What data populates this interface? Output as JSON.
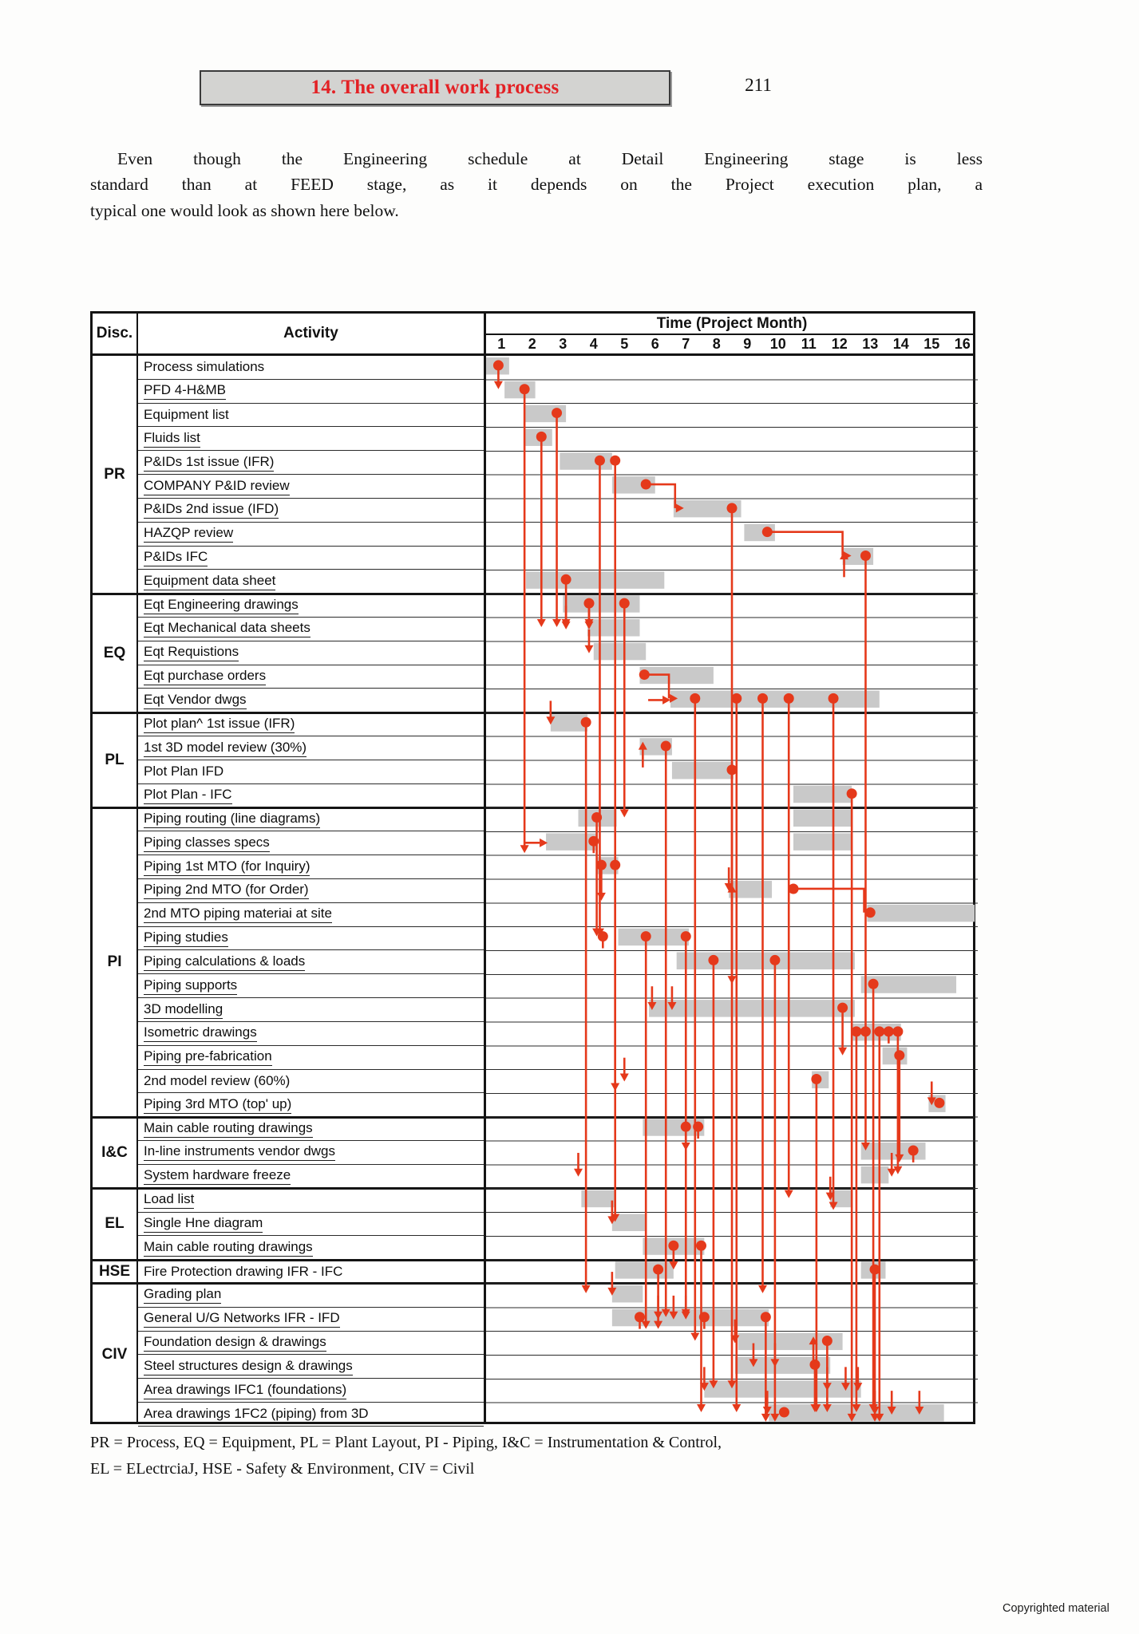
{
  "page": {
    "title": "14. The overall work process",
    "number": "211",
    "para": [
      "Even though the Engineering schedule at Detail Engineering stage is less",
      "standard than at FEED stage, as it depends on the Project execution plan, a",
      "typical one would look as shown here below."
    ],
    "legend": [
      "PR = Process, EQ = Equipment, PL = Plant Layout, PI - Piping, I&C = Instrumentation & Control,",
      "EL = ELectrciaJ, HSE - Safety & Environment, CIV = Civil"
    ],
    "copyright": "Copyrighted material"
  },
  "table": {
    "headers": {
      "disc": "Disc.",
      "activity": "Activity",
      "time": "Time (Project Month)"
    },
    "months": [
      "1",
      "2",
      "3",
      "4",
      "5",
      "6",
      "7",
      "8",
      "9",
      "10",
      "11",
      "12",
      "13",
      "14",
      "15",
      "16"
    ]
  },
  "chart_data": {
    "type": "gantt",
    "title": "Time (Project Month)",
    "x_range": [
      1,
      16
    ],
    "colors": {
      "bar": "#c9c9c9",
      "accent": "#e5391b",
      "grid": "#1c1c1c"
    },
    "sections": [
      {
        "code": "PR",
        "rows": [
          {
            "a": "Process simulations",
            "u": 0,
            "bars": [
              [
                1.0,
                1.75
              ]
            ],
            "dots": [
              [
                1.4,
                1
              ]
            ]
          },
          {
            "a": "PFD 4-H&MB",
            "u": 1,
            "bars": [
              [
                1.6,
                2.6
              ]
            ],
            "dots": [
              [
                2.25,
                19.5
              ]
            ]
          },
          {
            "a": "Equipment list",
            "u": 0,
            "bars": [
              [
                2.25,
                3.6
              ]
            ],
            "dots": [
              [
                3.3,
                9
              ]
            ]
          },
          {
            "a": "Fluids list",
            "u": 1,
            "bars": [
              [
                2.25,
                3.15
              ]
            ],
            "dots": [
              [
                2.8,
                8
              ]
            ]
          },
          {
            "a": "P&IDs 1st issue (IFR)",
            "u": 1,
            "bars": [
              [
                3.4,
                5.1
              ]
            ],
            "dots": [
              [
                4.7,
                20
              ],
              [
                5.2,
                26.5
              ]
            ]
          },
          {
            "a": "COMPANY P&ID review",
            "u": 1,
            "bars": [
              [
                5.1,
                6.5
              ]
            ],
            "dots": [
              [
                6.2,
                0
              ]
            ]
          },
          {
            "a": "P&IDs 2nd issue (IFD)",
            "u": 1,
            "bars": [
              [
                7.1,
                9.3
              ]
            ],
            "dots": [
              [
                9.0,
                37
              ]
            ]
          },
          {
            "a": "HAZQP review",
            "u": 1,
            "bars": [
              [
                9.4,
                10.4
              ]
            ],
            "dots": [
              [
                10.15,
                0
              ]
            ]
          },
          {
            "a": "P&IDs IFC",
            "u": 1,
            "bars": [
              [
                12.6,
                13.6
              ]
            ],
            "dots": [
              [
                13.35,
                25
              ]
            ],
            "up": [
              12.65
            ]
          },
          {
            "a": "Equipment data sheet",
            "u": 1,
            "bars": [
              [
                2.3,
                6.8
              ]
            ],
            "dots": [
              [
                3.6,
                2
              ]
            ]
          }
        ]
      },
      {
        "code": "EQ",
        "rows": [
          {
            "a": "Eqt Engineering drawings",
            "u": 1,
            "bars": [
              [
                3.5,
                6.0
              ]
            ],
            "dots": [
              [
                4.35,
                1
              ],
              [
                5.5,
                9
              ]
            ]
          },
          {
            "a": "Eqt Mechanical data sheets",
            "u": 1,
            "bars": [
              [
                4.3,
                6.0
              ]
            ],
            "dn": [
              3.6,
              4.35
            ]
          },
          {
            "a": "Eqt Requistions",
            "u": 1,
            "bars": [
              [
                4.5,
                6.2
              ]
            ],
            "dn": [
              4.35
            ]
          },
          {
            "a": "Eqt purchase orders",
            "u": 1,
            "bars": [
              [
                6.0,
                8.4
              ]
            ],
            "dots": [
              [
                6.15,
                0
              ]
            ]
          },
          {
            "a": "Eqt Vendor dwgs",
            "u": 1,
            "bars": [
              [
                7.0,
                13.8
              ]
            ],
            "dots": [
              [
                7.8,
                27
              ],
              [
                9.15,
                30
              ],
              [
                10.0,
                25
              ],
              [
                10.85,
                21
              ],
              [
                12.3,
                21.5
              ]
            ],
            "in": [
              6.95
            ]
          }
        ]
      },
      {
        "code": "PL",
        "rows": [
          {
            "a": "Plot plan^ 1st issue (IFR)",
            "u": 1,
            "bars": [
              [
                3.1,
                4.3
              ]
            ],
            "dots": [
              [
                4.25,
                24
              ]
            ],
            "dn": [
              3.1
            ]
          },
          {
            "a": "1st 3D model review (30%)",
            "u": 1,
            "bars": [
              [
                6.0,
                7.05
              ]
            ],
            "dots": [
              [
                6.85,
                24
              ]
            ],
            "up": [
              6.1
            ]
          },
          {
            "a": "Plot Plan IFD",
            "u": 0,
            "bars": [
              [
                7.05,
                9.05
              ]
            ],
            "dots": [
              [
                9.0,
                9
              ]
            ]
          },
          {
            "a": "Plot Plan - IFC",
            "u": 1,
            "bars": [
              [
                11.0,
                12.9
              ]
            ],
            "dots": [
              [
                12.9,
                26.5
              ]
            ]
          }
        ]
      },
      {
        "code": "PI",
        "rows": [
          {
            "a": "Piping routing (line diagrams)",
            "u": 1,
            "bars": [
              [
                4.0,
                5.25
              ],
              [
                11.0,
                12.9
              ]
            ],
            "dots": [
              [
                4.6,
                5
              ]
            ]
          },
          {
            "a": "Piping classes specs",
            "u": 1,
            "bars": [
              [
                2.95,
                4.6
              ],
              [
                11.0,
                12.9
              ]
            ],
            "dots": [
              [
                4.5,
                0.5
              ]
            ],
            "in": [
              2.95
            ]
          },
          {
            "a": "Piping 1st MTO (for Inquiry)",
            "u": 1,
            "bars": [
              [
                4.6,
                5.3
              ]
            ],
            "dots": [
              [
                4.75,
                1.5
              ],
              [
                5.2,
                15
              ]
            ]
          },
          {
            "a": "Piping 2nd MTO (for Order)",
            "u": 1,
            "bars": [
              [
                8.9,
                10.3
              ]
            ],
            "dots": [
              [
                11.0,
                0
              ]
            ],
            "up": [
              9.0
            ],
            "dn": [
              8.9
            ]
          },
          {
            "a": "2nd MTO piping materiai at site",
            "u": 1,
            "bars": [
              [
                13.4,
                16.9
              ]
            ],
            "dots": [
              [
                13.5,
                0
              ]
            ]
          },
          {
            "a": "Piping studies",
            "u": 1,
            "bars": [
              [
                5.3,
                7.6
              ]
            ],
            "dots": [
              [
                4.8,
                0.5
              ],
              [
                6.2,
                16.5
              ],
              [
                7.5,
                16
              ]
            ]
          },
          {
            "a": "Piping calculations & loads",
            "u": 1,
            "bars": [
              [
                7.2,
                13.0
              ]
            ],
            "dots": [
              [
                8.4,
                18
              ],
              [
                10.4,
                19.5
              ]
            ]
          },
          {
            "a": "Piping supports",
            "u": 1,
            "bars": [
              [
                13.2,
                16.3
              ]
            ],
            "dots": [
              [
                13.6,
                18
              ]
            ]
          },
          {
            "a": "3D modelling",
            "u": 1,
            "bars": [
              [
                6.3,
                13.0
              ]
            ],
            "dots": [
              [
                12.6,
                2
              ]
            ],
            "dn": [
              6.4,
              7.05
            ]
          },
          {
            "a": "Isometric drawings",
            "u": 1,
            "bars": [
              [
                12.9,
                14.5
              ]
            ],
            "dots": [
              [
                13.05,
                16
              ],
              [
                13.35,
                0.5
              ],
              [
                13.8,
                16.5
              ],
              [
                14.1,
                0.5
              ],
              [
                14.4,
                6
              ]
            ]
          },
          {
            "a": "Piping pre-fabrication",
            "u": 1,
            "bars": [
              [
                13.9,
                14.7
              ]
            ],
            "dots": [
              [
                14.45,
                4.5
              ]
            ]
          },
          {
            "a": "2nd model review (60%)",
            "u": 0,
            "bars": [
              [
                11.6,
                12.15
              ]
            ],
            "dots": [
              [
                11.75,
                14
              ]
            ],
            "dn": [
              5.5
            ]
          },
          {
            "a": "Piping 3rd MTO (top' up)",
            "u": 1,
            "bars": [
              [
                15.4,
                15.95
              ]
            ],
            "dots": [
              [
                15.75,
                0
              ]
            ],
            "dn": [
              15.5
            ]
          }
        ]
      },
      {
        "code": "I&C",
        "rows": [
          {
            "a": "Main cable routing drawings",
            "u": 1,
            "bars": [
              [
                6.1,
                8.1
              ]
            ],
            "dots": [
              [
                7.5,
                1
              ],
              [
                7.9,
                0.5
              ]
            ]
          },
          {
            "a": "In-line instruments vendor dwgs",
            "u": 1,
            "bars": [
              [
                13.2,
                15.3
              ]
            ],
            "dots": [
              [
                14.9,
                0.5
              ]
            ]
          },
          {
            "a": "System hardware freeze",
            "u": 1,
            "bars": [
              [
                13.2,
                14.1
              ]
            ],
            "dn": [
              4.0,
              14.2
            ]
          }
        ]
      },
      {
        "code": "EL",
        "rows": [
          {
            "a": "Load list",
            "u": 1,
            "bars": [
              [
                4.1,
                5.2
              ],
              [
                12.2,
                12.9
              ]
            ],
            "dn": [
              12.2
            ]
          },
          {
            "a": "Single Hne diagram",
            "u": 1,
            "bars": [
              [
                5.1,
                6.2
              ]
            ],
            "dn": [
              5.1
            ]
          },
          {
            "a": "Main cable routing drawings",
            "u": 1,
            "bars": [
              [
                6.1,
                8.1
              ]
            ],
            "dots": [
              [
                7.1,
                1
              ],
              [
                8.0,
                7
              ]
            ]
          }
        ]
      },
      {
        "code": "HSE",
        "rows": [
          {
            "a": "Fire Protection drawing IFR - IFC",
            "u": 0,
            "bars": [
              [
                5.2,
                7.1
              ],
              [
                13.2,
                14.0
              ]
            ],
            "dots": [
              [
                6.6,
                2.5
              ],
              [
                13.65,
                6.5
              ]
            ]
          }
        ]
      },
      {
        "code": "CIV",
        "rows": [
          {
            "a": "Grading plan",
            "u": 1,
            "bars": [
              [
                5.1,
                6.1
              ]
            ],
            "dn": [
              5.1
            ]
          },
          {
            "a": "General U/G Networks IFR - IFD",
            "u": 1,
            "bars": [
              [
                5.1,
                10.2
              ]
            ],
            "dots": [
              [
                6.0,
                0.5
              ],
              [
                8.1,
                0.5
              ],
              [
                10.1,
                4.5
              ]
            ],
            "dn": [
              6.6,
              7.1,
              7.5
            ]
          },
          {
            "a": "Foundation design & drawings",
            "u": 1,
            "bars": [
              [
                9.2,
                12.6
              ]
            ],
            "dots": [
              [
                12.1,
                3
              ]
            ],
            "dn": [
              9.1
            ],
            "up": [
              11.65
            ]
          },
          {
            "a": "Steel structures design & drawings",
            "u": 1,
            "bars": [
              [
                9.1,
                12.2
              ]
            ],
            "dots": [
              [
                11.7,
                2
              ]
            ],
            "dn": [
              9.7,
              10.4
            ]
          },
          {
            "a": "Area drawings IFC1 (foundations)",
            "u": 1,
            "bars": [
              [
                8.1,
                13.2
              ]
            ],
            "dn": [
              8.1,
              12.1,
              12.7,
              13.1
            ]
          },
          {
            "a": "Area drawings 1FC2 (piping) from 3D",
            "u": 0,
            "bars": [
              [
                10.2,
                15.9
              ]
            ],
            "dots": [
              [
                10.7,
                0
              ]
            ],
            "dn": [
              10.15,
              13.65,
              14.2,
              15.1
            ]
          }
        ]
      }
    ],
    "elbows": [
      {
        "r": 5,
        "a": 6.2,
        "b": 7.15
      },
      {
        "r": 7,
        "a": 10.15,
        "b": 12.6
      },
      {
        "r": 13,
        "a": 6.15,
        "b": 6.95
      },
      {
        "r": 22,
        "a": 11.0,
        "b": 13.3
      }
    ]
  }
}
